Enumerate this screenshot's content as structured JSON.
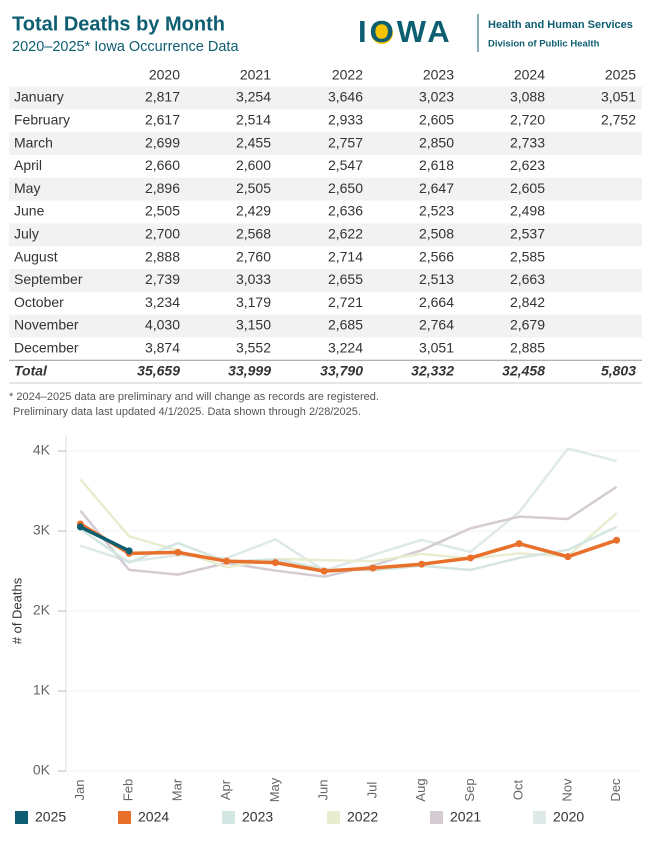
{
  "header": {
    "title": "Total Deaths by Month",
    "subtitle": "2020–2025* Iowa Occurrence Data",
    "logo": "IOWA",
    "agency": "Health and Human Services",
    "division": "Division of Public Health"
  },
  "table": {
    "columns": [
      "2020",
      "2021",
      "2022",
      "2023",
      "2024",
      "2025"
    ],
    "rows": [
      {
        "label": "January",
        "values": [
          "2,817",
          "3,254",
          "3,646",
          "3,023",
          "3,088",
          "3,051"
        ]
      },
      {
        "label": "February",
        "values": [
          "2,617",
          "2,514",
          "2,933",
          "2,605",
          "2,720",
          "2,752"
        ]
      },
      {
        "label": "March",
        "values": [
          "2,699",
          "2,455",
          "2,757",
          "2,850",
          "2,733"
        ]
      },
      {
        "label": "April",
        "values": [
          "2,660",
          "2,600",
          "2,547",
          "2,618",
          "2,623"
        ]
      },
      {
        "label": "May",
        "values": [
          "2,896",
          "2,505",
          "2,650",
          "2,647",
          "2,605"
        ]
      },
      {
        "label": "June",
        "values": [
          "2,505",
          "2,429",
          "2,636",
          "2,523",
          "2,498"
        ]
      },
      {
        "label": "July",
        "values": [
          "2,700",
          "2,568",
          "2,622",
          "2,508",
          "2,537"
        ]
      },
      {
        "label": "August",
        "values": [
          "2,888",
          "2,760",
          "2,714",
          "2,566",
          "2,585"
        ]
      },
      {
        "label": "September",
        "values": [
          "2,739",
          "3,033",
          "2,655",
          "2,513",
          "2,663"
        ]
      },
      {
        "label": "October",
        "values": [
          "3,234",
          "3,179",
          "2,721",
          "2,664",
          "2,842"
        ]
      },
      {
        "label": "November",
        "values": [
          "4,030",
          "3,150",
          "2,685",
          "2,764",
          "2,679"
        ]
      },
      {
        "label": "December",
        "values": [
          "3,874",
          "3,552",
          "3,224",
          "3,051",
          "2,885"
        ]
      }
    ],
    "total": {
      "label": "Total",
      "values": [
        "35,659",
        "33,999",
        "33,790",
        "32,332",
        "32,458",
        "5,803"
      ]
    }
  },
  "notes": [
    "* 2024–2025 data are preliminary and will change as records are registered.",
    "Preliminary data last updated 4/1/2025. Data shown through 2/28/2025."
  ],
  "chart_data": {
    "type": "line",
    "y_label": "# of Deaths",
    "categories": [
      "Jan",
      "Feb",
      "Mar",
      "Apr",
      "May",
      "Jun",
      "Jul",
      "Aug",
      "Sep",
      "Oct",
      "Nov",
      "Dec"
    ],
    "ylim": [
      0,
      4200
    ],
    "yticks": [
      {
        "value": 0,
        "label": "0K"
      },
      {
        "value": 1000,
        "label": "1K"
      },
      {
        "value": 2000,
        "label": "2K"
      },
      {
        "value": 3000,
        "label": "3K"
      },
      {
        "value": 4000,
        "label": "4K"
      }
    ],
    "grid": true,
    "series": [
      {
        "name": "2025",
        "color": "#0e5e72",
        "markers": true,
        "values": [
          3051,
          2752,
          null,
          null,
          null,
          null,
          null,
          null,
          null,
          null,
          null,
          null
        ]
      },
      {
        "name": "2024",
        "color": "#e8702a",
        "markers": true,
        "values": [
          3088,
          2720,
          2733,
          2623,
          2605,
          2498,
          2537,
          2585,
          2663,
          2842,
          2679,
          2885
        ]
      },
      {
        "name": "2023",
        "color": "#d3e6e1",
        "values": [
          3023,
          2605,
          2850,
          2618,
          2647,
          2523,
          2508,
          2566,
          2513,
          2664,
          2764,
          3051
        ]
      },
      {
        "name": "2022",
        "color": "#e9edcf",
        "values": [
          3646,
          2933,
          2757,
          2547,
          2650,
          2636,
          2622,
          2714,
          2655,
          2721,
          2685,
          3224
        ]
      },
      {
        "name": "2021",
        "color": "#d4cbd3",
        "values": [
          3254,
          2514,
          2455,
          2600,
          2505,
          2429,
          2568,
          2760,
          3033,
          3179,
          3150,
          3552
        ]
      },
      {
        "name": "2020",
        "color": "#dfeae8",
        "values": [
          2817,
          2617,
          2699,
          2660,
          2896,
          2505,
          2700,
          2888,
          2739,
          3234,
          4030,
          3874
        ]
      }
    ]
  }
}
